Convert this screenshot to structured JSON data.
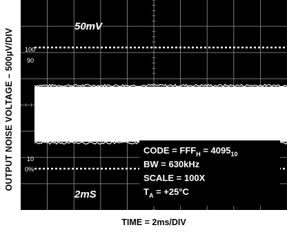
{
  "chart_data": {
    "type": "scope",
    "ylabel": "OUTPUT NOISE VOLTAGE – 500µV/DIV",
    "xlabel": "TIME = 2ms/DIV",
    "ch_scale": "50mV",
    "time_scale": "2mS",
    "markers": {
      "m100": "100",
      "m90": "90",
      "m10": "10",
      "m0": "0%"
    },
    "info": {
      "code_a": "CODE = FFF",
      "code_sub_h": "H",
      "code_b": " = 4095",
      "code_sub_10": "10",
      "bw": "BW = 630kHz",
      "scale": "SCALE = 100X",
      "temp_a": "T",
      "temp_sub": "A",
      "temp_b": " = +25°C"
    },
    "grid": {
      "hdiv": 10,
      "vdiv": 8
    },
    "noise_band": {
      "upper_div": 3.3,
      "lower_div": 5.4
    },
    "colors": {
      "screen": "#000000",
      "grid": "#9a9a9a",
      "trace": "#ffffff"
    }
  }
}
